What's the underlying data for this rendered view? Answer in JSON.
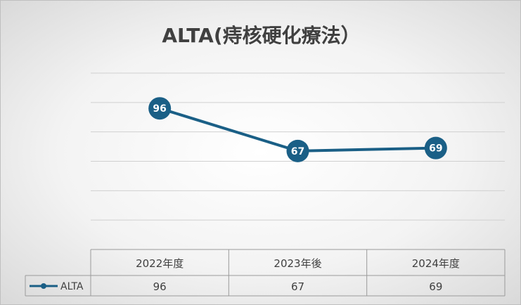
{
  "chart_data": {
    "type": "line",
    "title": "ALTA(痔核硬化療法）",
    "categories": [
      "2022年度",
      "2023年後",
      "2024年度"
    ],
    "series": [
      {
        "name": "ALTA",
        "values": [
          96,
          67,
          69
        ]
      }
    ],
    "ylim": [
      0,
      120
    ],
    "grid": true,
    "legend": "data-table",
    "colors": {
      "series": "#1a5f86",
      "label_text": "#ffffff"
    }
  }
}
